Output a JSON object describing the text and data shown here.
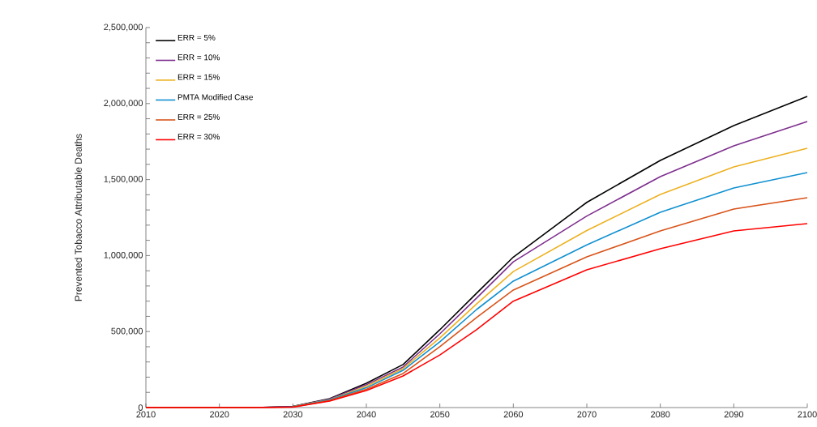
{
  "chart_data": {
    "type": "line",
    "ylabel": "Prevented Tobacco Attributable Deaths",
    "x": [
      2010,
      2020,
      2025,
      2030,
      2035,
      2040,
      2045,
      2050,
      2055,
      2060,
      2070,
      2080,
      2090,
      2100
    ],
    "series": [
      {
        "name": "ERR = 5%",
        "color": "#000000",
        "values": [
          0,
          0,
          0,
          8000,
          59000,
          160000,
          283000,
          512000,
          752000,
          990000,
          1350000,
          1626000,
          1855000,
          2047000
        ]
      },
      {
        "name": "ERR = 10%",
        "color": "#7E2F8E",
        "values": [
          null,
          null,
          0,
          7000,
          56000,
          150000,
          267000,
          485000,
          720000,
          959000,
          1260000,
          1519000,
          1722000,
          1882000
        ]
      },
      {
        "name": "ERR = 15%",
        "color": "#EDB120",
        "values": [
          null,
          null,
          null,
          6000,
          52000,
          140000,
          256000,
          458000,
          682000,
          895000,
          1165000,
          1402000,
          1583000,
          1706000
        ]
      },
      {
        "name": "PMTA Modified Case",
        "color": "#1090D0",
        "values": [
          null,
          null,
          null,
          5000,
          50000,
          130000,
          245000,
          432000,
          645000,
          832000,
          1070000,
          1285000,
          1445000,
          1546000
        ]
      },
      {
        "name": "ERR = 25%",
        "color": "#D95319",
        "values": [
          0,
          0,
          0,
          4000,
          46000,
          120000,
          224000,
          400000,
          592000,
          773000,
          991000,
          1162000,
          1306000,
          1381000
        ]
      },
      {
        "name": "ERR = 30%",
        "color": "#FF0000",
        "values": [
          0,
          0,
          0,
          3000,
          43000,
          112000,
          208000,
          346000,
          512000,
          700000,
          906000,
          1045000,
          1162000,
          1210000
        ]
      }
    ],
    "xlim": [
      2010,
      2100
    ],
    "xticks": [
      2010,
      2020,
      2030,
      2040,
      2050,
      2060,
      2070,
      2080,
      2090,
      2100
    ],
    "ylim": [
      0,
      2500000
    ],
    "yticks": [
      {
        "value": 0,
        "label": "0"
      },
      {
        "value": 500000,
        "label": "500,000"
      },
      {
        "value": 1000000,
        "label": "1,000,000"
      },
      {
        "value": 1500000,
        "label": "1,500,000"
      },
      {
        "value": 2000000,
        "label": "2,000,000"
      },
      {
        "value": 2500000,
        "label": "2,500,000"
      }
    ],
    "legend": "top left",
    "marker": "none",
    "line_style": "solid"
  }
}
